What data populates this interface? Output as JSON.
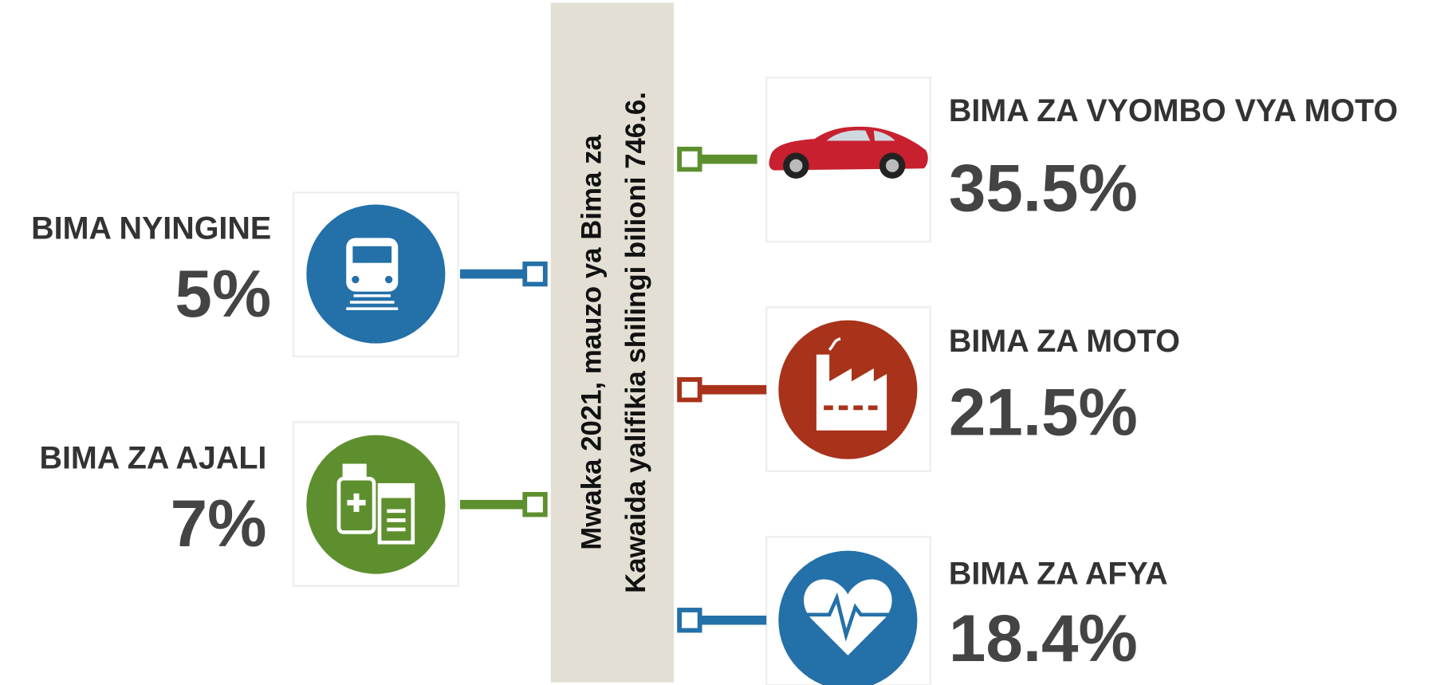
{
  "center_text": [
    "Mwaka 2021, mauzo ya Bima za",
    "Kawaida yalifikia shilingi bilioni 746.6."
  ],
  "items": [
    {
      "label": "BIMA NYINGINE",
      "value": "5%"
    },
    {
      "label": "BIMA ZA AJALI",
      "value": "7%"
    },
    {
      "label": "BIMA ZA VYOMBO VYA MOTO",
      "value": "35.5%"
    },
    {
      "label": "BIMA ZA MOTO",
      "value": "21.5%"
    },
    {
      "label": "BIMA ZA AFYA",
      "value": "18.4%"
    }
  ]
}
